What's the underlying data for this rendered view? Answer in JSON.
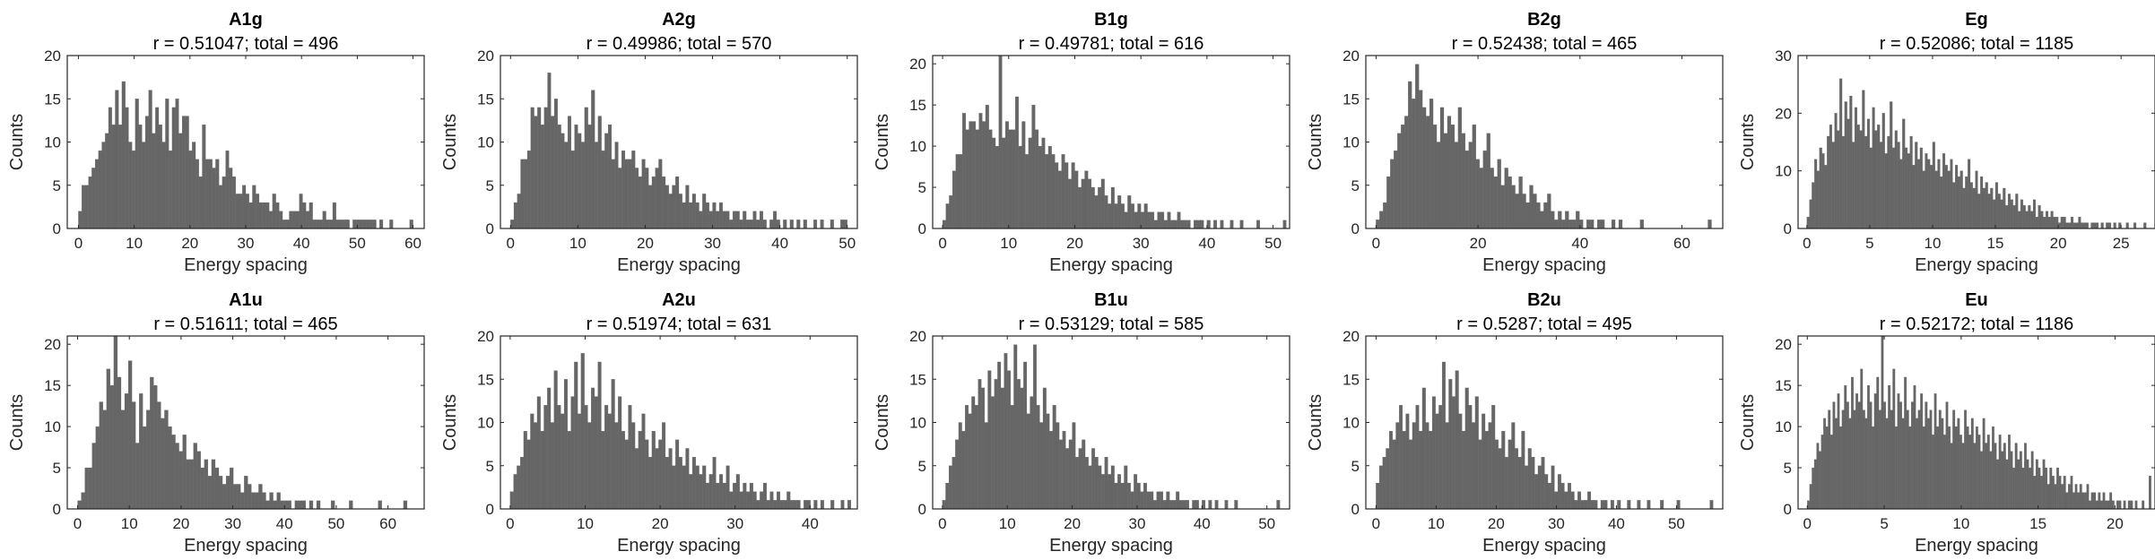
{
  "figure": {
    "bar_color": "#666666",
    "axis_color": "#262626",
    "background": "#ffffff",
    "xlabel": "Energy spacing",
    "ylabel": "Counts"
  },
  "chart_data": [
    {
      "type": "bar",
      "title": "A1g",
      "subtitle": "r = 0.51047; total = 496",
      "xlabel": "Energy spacing",
      "ylabel": "Counts",
      "xlim": [
        -2,
        62
      ],
      "ylim": [
        0,
        20
      ],
      "xticks": [
        0,
        10,
        20,
        30,
        40,
        50,
        60
      ],
      "yticks": [
        0,
        5,
        10,
        15,
        20
      ],
      "bin_start": 0,
      "bin_width": 0.6,
      "grid": false,
      "values": [
        2,
        5,
        5,
        6,
        7,
        8,
        9,
        10,
        11,
        14,
        12,
        16,
        12,
        17,
        14,
        10,
        9,
        15,
        12,
        10,
        13,
        16,
        11,
        14,
        12,
        10,
        15,
        9,
        14,
        15,
        11,
        13,
        13,
        9,
        10,
        8,
        6,
        12,
        8,
        8,
        7,
        8,
        5,
        6,
        9,
        7,
        6,
        4,
        4,
        5,
        4,
        3,
        5,
        4,
        3,
        3,
        3,
        2,
        4,
        3,
        2,
        1,
        1,
        2,
        2,
        2,
        4,
        3,
        2,
        3,
        1,
        1,
        1,
        2,
        1,
        1,
        3,
        1,
        1,
        1,
        1,
        0,
        1,
        1,
        1,
        1,
        1,
        1,
        1,
        0,
        1,
        0,
        0,
        1,
        0,
        0,
        0,
        0,
        0,
        1
      ]
    },
    {
      "type": "bar",
      "title": "A2g",
      "subtitle": "r = 0.49986; total = 570",
      "xlabel": "Energy spacing",
      "ylabel": "Counts",
      "xlim": [
        -1.5,
        51.5
      ],
      "ylim": [
        0,
        20
      ],
      "xticks": [
        0,
        10,
        20,
        30,
        40,
        50
      ],
      "yticks": [
        0,
        5,
        10,
        15,
        20
      ],
      "bin_start": 0,
      "bin_width": 0.5,
      "grid": false,
      "values": [
        1,
        3,
        4,
        8,
        8,
        9,
        14,
        13,
        14,
        12,
        14,
        18,
        13,
        15,
        12,
        11,
        10,
        13,
        9,
        12,
        11,
        10,
        14,
        12,
        16,
        10,
        13,
        9,
        11,
        12,
        8,
        10,
        7,
        9,
        8,
        8,
        9,
        7,
        6,
        8,
        7,
        5,
        6,
        7,
        8,
        6,
        5,
        4,
        5,
        6,
        4,
        3,
        5,
        3,
        4,
        3,
        2,
        4,
        3,
        2,
        3,
        2,
        3,
        2,
        2,
        1,
        2,
        2,
        1,
        2,
        1,
        1,
        2,
        1,
        2,
        1,
        0,
        1,
        2,
        1,
        0,
        1,
        0,
        1,
        0,
        1,
        0,
        1,
        0,
        0,
        1,
        0,
        1,
        0,
        0,
        1,
        0,
        0,
        1,
        1
      ]
    },
    {
      "type": "bar",
      "title": "B1g",
      "subtitle": "r = 0.49781; total = 616",
      "xlabel": "Energy spacing",
      "ylabel": "Counts",
      "xlim": [
        -1.5,
        52.5
      ],
      "ylim": [
        0,
        21
      ],
      "xticks": [
        0,
        10,
        20,
        30,
        40,
        50
      ],
      "yticks": [
        0,
        5,
        10,
        15,
        20
      ],
      "bin_start": 0,
      "bin_width": 0.5,
      "grid": false,
      "values": [
        1,
        3,
        4,
        7,
        9,
        9,
        14,
        12,
        13,
        13,
        12,
        14,
        13,
        15,
        12,
        11,
        10,
        21,
        11,
        13,
        12,
        12,
        16,
        10,
        13,
        9,
        11,
        15,
        12,
        10,
        11,
        9,
        10,
        9,
        8,
        7,
        9,
        8,
        6,
        8,
        7,
        5,
        6,
        7,
        6,
        5,
        4,
        5,
        6,
        4,
        3,
        5,
        3,
        4,
        3,
        2,
        4,
        3,
        2,
        3,
        2,
        3,
        2,
        2,
        1,
        2,
        2,
        1,
        2,
        1,
        1,
        2,
        1,
        1,
        1,
        0,
        1,
        1,
        1,
        0,
        1,
        0,
        1,
        0,
        1,
        0,
        0,
        1,
        0,
        0,
        1,
        0,
        0,
        0,
        0,
        1,
        0,
        0,
        0,
        0,
        0,
        0,
        0,
        1
      ]
    },
    {
      "type": "bar",
      "title": "B2g",
      "subtitle": "r = 0.52438; total = 465",
      "xlabel": "Energy spacing",
      "ylabel": "Counts",
      "xlim": [
        -2,
        68
      ],
      "ylim": [
        0,
        20
      ],
      "xticks": [
        0,
        20,
        40,
        60
      ],
      "yticks": [
        0,
        5,
        10,
        15,
        20
      ],
      "bin_start": 0,
      "bin_width": 0.7,
      "grid": false,
      "values": [
        1,
        2,
        3,
        6,
        8,
        9,
        11,
        12,
        13,
        17,
        15,
        19,
        16,
        14,
        13,
        15,
        12,
        10,
        14,
        11,
        13,
        12,
        10,
        14,
        11,
        9,
        10,
        12,
        8,
        7,
        9,
        11,
        7,
        6,
        8,
        5,
        7,
        6,
        5,
        4,
        6,
        4,
        3,
        5,
        4,
        3,
        2,
        3,
        4,
        2,
        1,
        2,
        1,
        2,
        1,
        1,
        2,
        1,
        0,
        1,
        1,
        0,
        1,
        1,
        0,
        0,
        1,
        0,
        1,
        0,
        0,
        0,
        0,
        0,
        1,
        0,
        0,
        0,
        0,
        0,
        0,
        0,
        0,
        0,
        0,
        0,
        0,
        0,
        0,
        0,
        0,
        0,
        0,
        1
      ]
    },
    {
      "type": "bar",
      "title": "Eg",
      "subtitle": "r = 0.52086; total = 1185",
      "xlabel": "Energy spacing",
      "ylabel": "Counts",
      "xlim": [
        -0.7,
        27.7
      ],
      "ylim": [
        0,
        30
      ],
      "xticks": [
        0,
        5,
        10,
        15,
        20,
        25
      ],
      "yticks": [
        0,
        10,
        20,
        30
      ],
      "bin_start": 0,
      "bin_width": 0.2,
      "grid": false,
      "values": [
        2,
        5,
        8,
        12,
        10,
        14,
        13,
        11,
        16,
        18,
        15,
        20,
        17,
        26,
        16,
        22,
        19,
        23,
        15,
        21,
        18,
        17,
        24,
        16,
        19,
        14,
        21,
        17,
        18,
        15,
        20,
        13,
        16,
        22,
        14,
        17,
        15,
        12,
        19,
        14,
        13,
        16,
        11,
        15,
        12,
        14,
        10,
        13,
        12,
        11,
        15,
        10,
        12,
        9,
        13,
        11,
        10,
        12,
        8,
        11,
        9,
        10,
        7,
        9,
        12,
        8,
        7,
        10,
        6,
        9,
        7,
        8,
        6,
        7,
        5,
        8,
        6,
        5,
        7,
        4,
        6,
        5,
        4,
        6,
        3,
        5,
        4,
        3,
        4,
        3,
        5,
        2,
        4,
        3,
        2,
        3,
        2,
        3,
        2,
        2,
        1,
        2,
        2,
        1,
        1,
        2,
        1,
        1,
        2,
        1,
        1,
        1,
        0,
        1,
        1,
        1,
        0,
        1,
        0,
        1,
        1,
        0,
        1,
        0,
        1,
        0,
        0,
        1,
        0,
        0,
        1,
        0,
        0,
        0,
        1,
        0,
        0,
        0,
        0,
        1
      ]
    },
    {
      "type": "bar",
      "title": "A1u",
      "subtitle": "r = 0.51611; total = 465",
      "xlabel": "Energy spacing",
      "ylabel": "Counts",
      "xlim": [
        -2,
        67
      ],
      "ylim": [
        0,
        21
      ],
      "xticks": [
        0,
        10,
        20,
        30,
        40,
        50,
        60
      ],
      "yticks": [
        0,
        5,
        10,
        15,
        20
      ],
      "bin_start": 0,
      "bin_width": 0.7,
      "grid": false,
      "values": [
        1,
        2,
        5,
        5,
        8,
        10,
        13,
        12,
        17,
        15,
        21,
        16,
        12,
        14,
        18,
        13,
        8,
        14,
        10,
        12,
        16,
        15,
        13,
        11,
        12,
        10,
        9,
        8,
        7,
        9,
        6,
        6,
        8,
        7,
        5,
        6,
        4,
        6,
        5,
        4,
        3,
        4,
        5,
        3,
        3,
        2,
        4,
        3,
        2,
        2,
        3,
        2,
        1,
        2,
        1,
        2,
        1,
        1,
        1,
        0,
        1,
        1,
        1,
        0,
        1,
        0,
        1,
        0,
        0,
        0,
        1,
        0,
        0,
        0,
        0,
        1,
        0,
        0,
        0,
        0,
        0,
        0,
        0,
        1,
        0,
        0,
        0,
        0,
        0,
        0,
        1
      ]
    },
    {
      "type": "bar",
      "title": "A2u",
      "subtitle": "r = 0.51974; total = 631",
      "xlabel": "Energy spacing",
      "ylabel": "Counts",
      "xlim": [
        -1.3,
        46.3
      ],
      "ylim": [
        0,
        20
      ],
      "xticks": [
        0,
        10,
        20,
        30,
        40
      ],
      "yticks": [
        0,
        5,
        10,
        15,
        20
      ],
      "bin_start": 0,
      "bin_width": 0.45,
      "grid": false,
      "values": [
        2,
        4,
        5,
        6,
        9,
        8,
        11,
        10,
        13,
        9,
        12,
        14,
        10,
        16,
        12,
        11,
        15,
        9,
        13,
        17,
        11,
        18,
        12,
        10,
        14,
        13,
        17,
        9,
        12,
        11,
        15,
        10,
        13,
        9,
        8,
        12,
        10,
        7,
        9,
        11,
        8,
        6,
        9,
        7,
        8,
        10,
        6,
        7,
        5,
        8,
        6,
        5,
        7,
        4,
        6,
        5,
        4,
        5,
        3,
        4,
        6,
        3,
        4,
        3,
        5,
        2,
        3,
        4,
        2,
        3,
        2,
        3,
        2,
        1,
        2,
        3,
        1,
        2,
        1,
        2,
        1,
        1,
        2,
        1,
        1,
        1,
        0,
        1,
        1,
        0,
        1,
        0,
        1,
        0,
        0,
        1,
        0,
        0,
        1,
        0,
        1
      ]
    },
    {
      "type": "bar",
      "title": "B1u",
      "subtitle": "r = 0.53129; total = 585",
      "xlabel": "Energy spacing",
      "ylabel": "Counts",
      "xlim": [
        -1.5,
        53.5
      ],
      "ylim": [
        0,
        20
      ],
      "xticks": [
        0,
        10,
        20,
        30,
        40,
        50
      ],
      "yticks": [
        0,
        5,
        10,
        15,
        20
      ],
      "bin_start": 0,
      "bin_width": 0.5,
      "grid": false,
      "values": [
        1,
        3,
        5,
        6,
        8,
        10,
        9,
        12,
        11,
        13,
        12,
        15,
        14,
        10,
        16,
        13,
        15,
        17,
        14,
        18,
        16,
        12,
        19,
        15,
        14,
        17,
        11,
        13,
        19,
        12,
        10,
        14,
        11,
        9,
        12,
        10,
        8,
        9,
        7,
        8,
        10,
        6,
        7,
        8,
        6,
        5,
        7,
        6,
        5,
        4,
        6,
        4,
        5,
        3,
        4,
        3,
        5,
        3,
        2,
        4,
        3,
        2,
        3,
        2,
        2,
        1,
        2,
        2,
        1,
        2,
        1,
        1,
        2,
        1,
        1,
        1,
        0,
        1,
        1,
        0,
        1,
        0,
        1,
        0,
        1,
        0,
        0,
        1,
        0,
        0,
        1,
        0,
        0,
        0,
        0,
        0,
        0,
        0,
        0,
        0,
        0,
        0,
        0,
        1
      ]
    },
    {
      "type": "bar",
      "title": "B2u",
      "subtitle": "r = 0.5287; total = 495",
      "xlabel": "Energy spacing",
      "ylabel": "Counts",
      "xlim": [
        -1.7,
        57.7
      ],
      "ylim": [
        0,
        20
      ],
      "xticks": [
        0,
        10,
        20,
        30,
        40,
        50
      ],
      "yticks": [
        0,
        5,
        10,
        15,
        20
      ],
      "bin_start": 0,
      "bin_width": 0.55,
      "grid": false,
      "values": [
        3,
        5,
        6,
        7,
        9,
        8,
        10,
        12,
        9,
        11,
        8,
        10,
        12,
        9,
        14,
        10,
        9,
        13,
        11,
        12,
        17,
        10,
        15,
        13,
        16,
        11,
        9,
        14,
        12,
        10,
        13,
        8,
        11,
        9,
        10,
        12,
        8,
        7,
        9,
        6,
        8,
        10,
        7,
        6,
        9,
        5,
        7,
        6,
        4,
        5,
        6,
        4,
        3,
        5,
        2,
        4,
        3,
        2,
        3,
        2,
        1,
        2,
        1,
        1,
        2,
        1,
        1,
        0,
        1,
        1,
        0,
        1,
        0,
        1,
        0,
        0,
        1,
        0,
        0,
        1,
        0,
        0,
        1,
        0,
        0,
        0,
        1,
        0,
        0,
        0,
        0,
        1,
        0,
        0,
        0,
        0,
        0,
        0,
        0,
        0,
        0,
        1
      ]
    },
    {
      "type": "bar",
      "title": "Eu",
      "subtitle": "r = 0.52172; total = 1186",
      "xlabel": "Energy spacing",
      "ylabel": "Counts",
      "xlim": [
        -0.6,
        22.6
      ],
      "ylim": [
        0,
        21
      ],
      "xticks": [
        0,
        5,
        10,
        15,
        20
      ],
      "yticks": [
        0,
        5,
        10,
        15,
        20
      ],
      "bin_start": 0,
      "bin_width": 0.15,
      "grid": false,
      "values": [
        1,
        3,
        5,
        6,
        8,
        7,
        9,
        11,
        10,
        12,
        9,
        13,
        11,
        14,
        10,
        12,
        15,
        13,
        11,
        16,
        12,
        14,
        13,
        17,
        12,
        11,
        15,
        13,
        10,
        14,
        16,
        12,
        21,
        13,
        11,
        15,
        12,
        17,
        10,
        14,
        13,
        11,
        16,
        12,
        10,
        13,
        15,
        11,
        12,
        14,
        10,
        13,
        11,
        12,
        9,
        14,
        10,
        12,
        11,
        9,
        13,
        10,
        8,
        12,
        10,
        11,
        9,
        8,
        12,
        10,
        9,
        11,
        8,
        10,
        9,
        7,
        11,
        8,
        9,
        7,
        10,
        8,
        6,
        9,
        7,
        8,
        6,
        9,
        7,
        5,
        8,
        6,
        7,
        5,
        8,
        6,
        5,
        7,
        4,
        6,
        5,
        4,
        6,
        5,
        3,
        5,
        4,
        3,
        5,
        4,
        3,
        4,
        2,
        3,
        4,
        2,
        3,
        2,
        3,
        2,
        2,
        3,
        1,
        2,
        2,
        1,
        2,
        1,
        2,
        1,
        1,
        2,
        1,
        0,
        1,
        1,
        0,
        1,
        0,
        1,
        1,
        0,
        1,
        0,
        0,
        1,
        0,
        0,
        4
      ]
    }
  ]
}
